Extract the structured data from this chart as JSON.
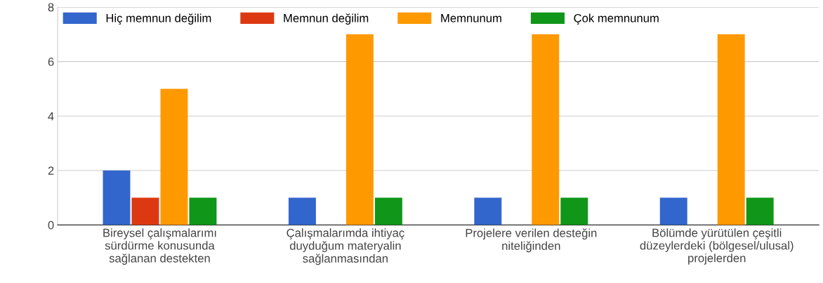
{
  "chart_data": {
    "type": "bar",
    "categories": [
      "Bireysel çalışmalarımı\nsürdürme konusunda\nsağlanan destekten",
      "Çalışmalarımda ihtiyaç\nduyduğum materyalin\nsağlanmasından",
      "Projelere verilen desteğin\nniteliğinden",
      "Bölümde yürütülen çeşitli\ndüzeylerdeki (bölgesel/ulusal)\nprojelerden"
    ],
    "series": [
      {
        "name": "Hiç memnun değilim",
        "color": "#3366cc",
        "values": [
          2,
          1,
          1,
          1
        ]
      },
      {
        "name": "Memnun değilim",
        "color": "#dc3912",
        "values": [
          1,
          0,
          0,
          0
        ]
      },
      {
        "name": "Memnunum",
        "color": "#ff9900",
        "values": [
          5,
          7,
          7,
          7
        ]
      },
      {
        "name": "Çok memnunum",
        "color": "#109618",
        "values": [
          1,
          1,
          1,
          1
        ]
      }
    ],
    "ylim": [
      0,
      8
    ],
    "yticks": [
      0,
      2,
      4,
      6,
      8
    ],
    "grid": "y",
    "legend": "top left"
  }
}
